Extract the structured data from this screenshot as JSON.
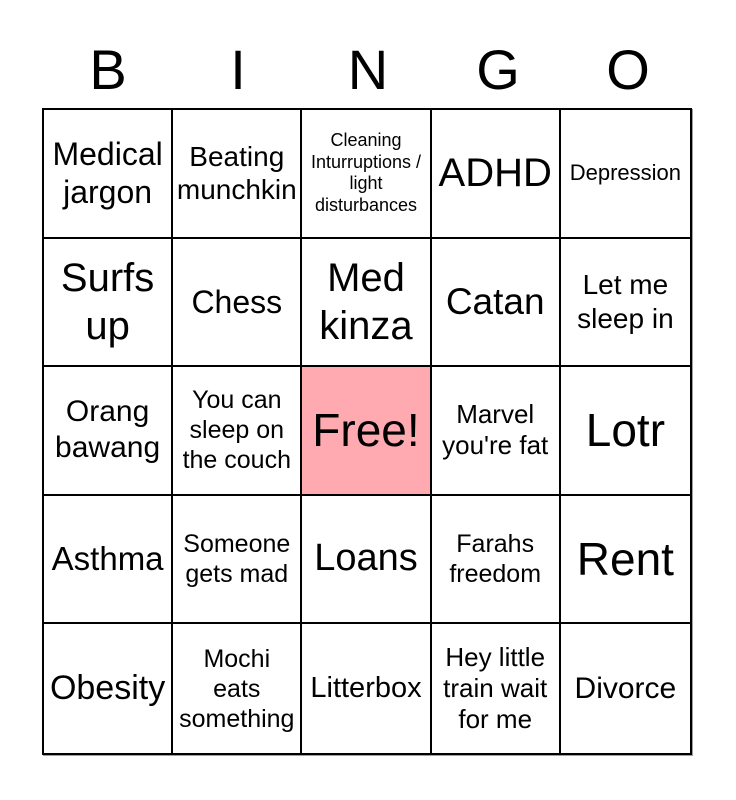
{
  "title": {
    "letters": [
      "B",
      "I",
      "N",
      "G",
      "O"
    ]
  },
  "board": {
    "free_cell_color": "#ffa9b0",
    "border_color": "#000000",
    "cells": [
      {
        "text": "Medical jargon"
      },
      {
        "text": "Beating munchkin"
      },
      {
        "text": "Cleaning Inturruptions / light disturbances"
      },
      {
        "text": "ADHD"
      },
      {
        "text": "Depression"
      },
      {
        "text": "Surfs up"
      },
      {
        "text": "Chess"
      },
      {
        "text": "Med kinza"
      },
      {
        "text": "Catan"
      },
      {
        "text": "Let me sleep in"
      },
      {
        "text": "Orang bawang"
      },
      {
        "text": "You can sleep on the couch"
      },
      {
        "text": "Free!",
        "free": true
      },
      {
        "text": "Marvel you're fat"
      },
      {
        "text": "Lotr"
      },
      {
        "text": "Asthma"
      },
      {
        "text": "Someone gets mad"
      },
      {
        "text": "Loans"
      },
      {
        "text": "Farahs freedom"
      },
      {
        "text": "Rent"
      },
      {
        "text": "Obesity"
      },
      {
        "text": "Mochi eats something"
      },
      {
        "text": "Litterbox"
      },
      {
        "text": "Hey little train wait for me"
      },
      {
        "text": "Divorce"
      }
    ]
  }
}
